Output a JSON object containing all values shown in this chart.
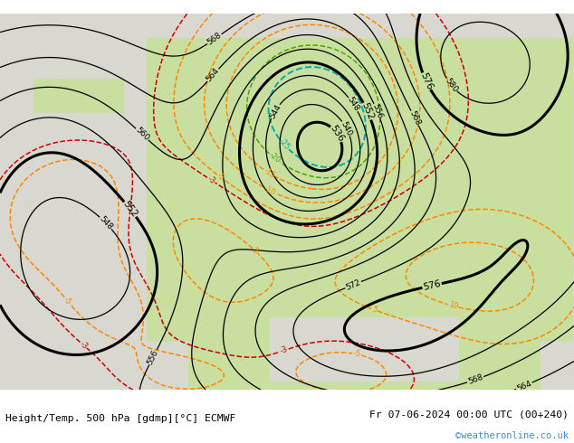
{
  "title_left": "Height/Temp. 500 hPa [gdmp][°C] ECMWF",
  "title_right": "Fr 07-06-2024 00:00 UTC (00+240)",
  "watermark": "©weatheronline.co.uk",
  "bg_land": "#c8dfa0",
  "bg_sea": "#d8d8d0",
  "bottom_bar_color": "#e8e8e8",
  "watermark_color": "#4488cc",
  "geo_color": "#000000",
  "temp_orange_color": "#ff8800",
  "temp_red_color": "#cc0000",
  "temp_green_color": "#44aa00",
  "temp_cyan_color": "#00aaaa",
  "geo_bold_values": [
    536,
    552,
    576
  ],
  "figsize": [
    6.34,
    4.9
  ],
  "dpi": 100
}
